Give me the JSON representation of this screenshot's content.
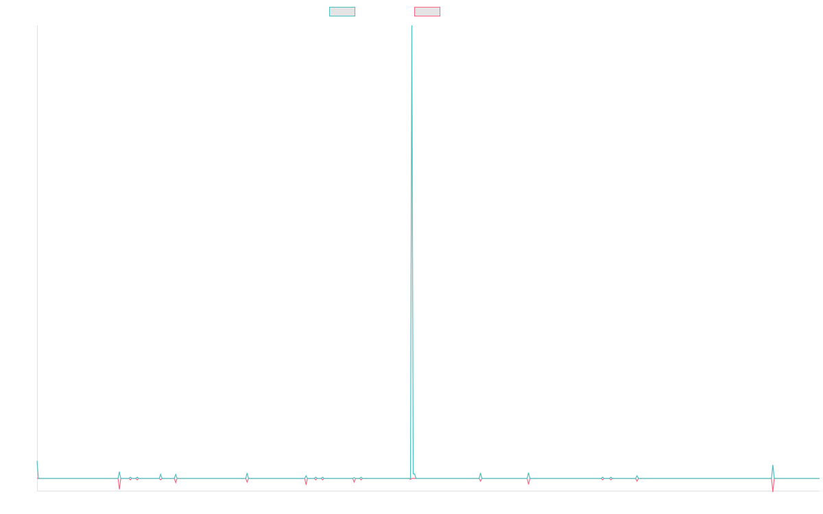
{
  "chart_data": {
    "type": "line",
    "title": "",
    "xlabel": "",
    "ylabel": "",
    "xlim": [
      0,
      570
    ],
    "ylim": [
      -2.7,
      100
    ],
    "grid": false,
    "legend": "top-center",
    "series": [
      {
        "color": "#4bc0c0",
        "points": [
          [
            0,
            3.9
          ],
          [
            60,
            1.5
          ],
          [
            68,
            0.3
          ],
          [
            73,
            0.3
          ],
          [
            90,
            0.9
          ],
          [
            101,
            0.9
          ],
          [
            153,
            1.2
          ],
          [
            196,
            0.6
          ],
          [
            203,
            0.3
          ],
          [
            208,
            0.3
          ],
          [
            231,
            0.2
          ],
          [
            236,
            0.3
          ],
          [
            273,
            100
          ],
          [
            274,
            1.0
          ],
          [
            275,
            1.0
          ],
          [
            323,
            1.2
          ],
          [
            358,
            1.3
          ],
          [
            412,
            0.3
          ],
          [
            418,
            0.3
          ],
          [
            437,
            0.6
          ],
          [
            536,
            3.0
          ]
        ]
      },
      {
        "color": "#ff6384",
        "points": [
          [
            60,
            -2.4
          ],
          [
            68,
            -0.3
          ],
          [
            73,
            -0.3
          ],
          [
            90,
            -0.3
          ],
          [
            101,
            -0.9
          ],
          [
            153,
            -0.8
          ],
          [
            196,
            -1.4
          ],
          [
            203,
            -0.3
          ],
          [
            208,
            -0.3
          ],
          [
            231,
            -0.8
          ],
          [
            236,
            -0.3
          ],
          [
            272,
            -0.2
          ],
          [
            323,
            -0.6
          ],
          [
            358,
            -1.3
          ],
          [
            412,
            -0.3
          ],
          [
            418,
            -0.3
          ],
          [
            437,
            -0.6
          ],
          [
            536,
            -3.0
          ]
        ]
      }
    ]
  }
}
